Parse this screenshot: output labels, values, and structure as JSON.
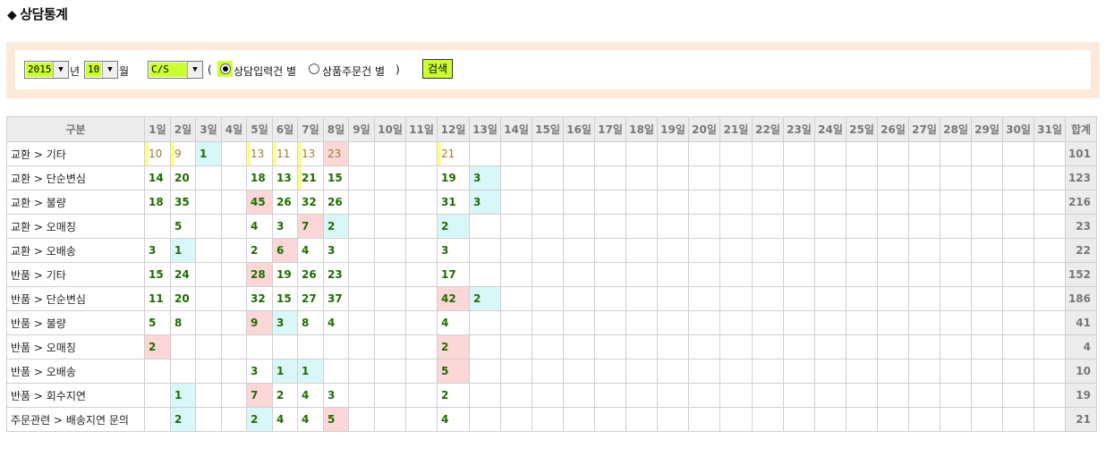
{
  "page": {
    "title": "상담통계",
    "title_marker": "◆"
  },
  "filter": {
    "year": "2015",
    "year_unit": "년",
    "month": "10",
    "month_unit": "월",
    "category": "C/S",
    "paren_open": "(",
    "paren_close": ")",
    "radio1_label": "상담입력건 별",
    "radio2_label": "상품주문건 별",
    "search_label": "검색"
  },
  "table": {
    "header_category": "구분",
    "days": [
      "1일",
      "2일",
      "3일",
      "4일",
      "5일",
      "6일",
      "7일",
      "8일",
      "9일",
      "10일",
      "11일",
      "12일",
      "13일",
      "14일",
      "15일",
      "16일",
      "17일",
      "18일",
      "19일",
      "20일",
      "21일",
      "22일",
      "23일",
      "24일",
      "25일",
      "26일",
      "27일",
      "28일",
      "29일",
      "30일",
      "31일"
    ],
    "header_total": "합계",
    "rows": [
      {
        "label": "교환 > 기타",
        "cells": {
          "1": "10",
          "2": "9",
          "3": "1",
          "5": "13",
          "6": "11",
          "7": "13",
          "8": "23",
          "12": "21"
        },
        "total": "101"
      },
      {
        "label": "교환 > 단순변심",
        "cells": {
          "1": "14",
          "2": "20",
          "5": "18",
          "6": "13",
          "7": "21",
          "8": "15",
          "12": "19",
          "13": "3"
        },
        "total": "123"
      },
      {
        "label": "교환 > 불량",
        "cells": {
          "1": "18",
          "2": "35",
          "5": "45",
          "6": "26",
          "7": "32",
          "8": "26",
          "12": "31",
          "13": "3"
        },
        "total": "216"
      },
      {
        "label": "교환 > 오매칭",
        "cells": {
          "2": "5",
          "5": "4",
          "6": "3",
          "7": "7",
          "8": "2",
          "12": "2"
        },
        "total": "23"
      },
      {
        "label": "교환 > 오배송",
        "cells": {
          "1": "3",
          "2": "1",
          "5": "2",
          "6": "6",
          "7": "4",
          "8": "3",
          "12": "3"
        },
        "total": "22"
      },
      {
        "label": "반품 > 기타",
        "cells": {
          "1": "15",
          "2": "24",
          "5": "28",
          "6": "19",
          "7": "26",
          "8": "23",
          "12": "17"
        },
        "total": "152"
      },
      {
        "label": "반품 > 단순변심",
        "cells": {
          "1": "11",
          "2": "20",
          "5": "32",
          "6": "15",
          "7": "27",
          "8": "37",
          "12": "42",
          "13": "2"
        },
        "total": "186"
      },
      {
        "label": "반품 > 불량",
        "cells": {
          "1": "5",
          "2": "8",
          "5": "9",
          "6": "3",
          "7": "8",
          "8": "4",
          "12": "4"
        },
        "total": "41"
      },
      {
        "label": "반품 > 오매칭",
        "cells": {
          "1": "2",
          "12": "2"
        },
        "total": "4"
      },
      {
        "label": "반품 > 오배송",
        "cells": {
          "5": "3",
          "6": "1",
          "7": "1",
          "12": "5"
        },
        "total": "10"
      },
      {
        "label": "반품 > 회수지연",
        "cells": {
          "2": "1",
          "5": "7",
          "6": "2",
          "7": "4",
          "8": "3",
          "12": "2"
        },
        "total": "19"
      },
      {
        "label": "주문관련 > 배송지연 문의",
        "cells": {
          "2": "2",
          "5": "2",
          "6": "4",
          "7": "4",
          "8": "5",
          "12": "4"
        },
        "total": "21"
      }
    ]
  }
}
